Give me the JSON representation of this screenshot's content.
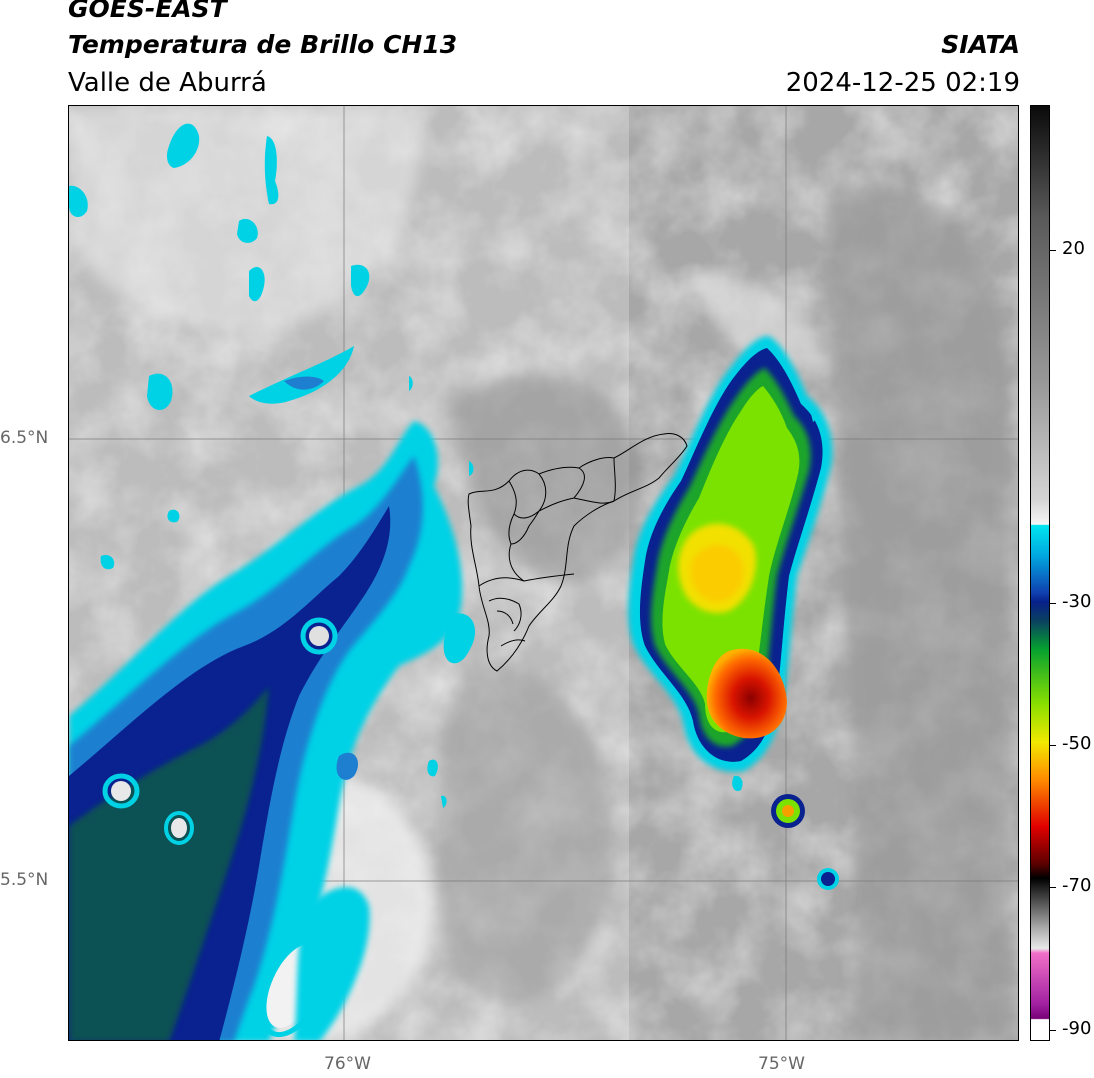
{
  "header": {
    "satellite": "GOES-EAST",
    "product": "Temperatura de Brillo CH13",
    "region": "Valle de Aburrá",
    "agency": "SIATA",
    "datetime": "2024-12-25 02:19"
  },
  "axes": {
    "lat_labels": [
      "6.5°N",
      "5.5°N"
    ],
    "lon_labels": [
      "76°W",
      "75°W"
    ]
  },
  "colorbar": {
    "tick_labels": [
      "20",
      "-30",
      "-50",
      "-70",
      "-90"
    ]
  },
  "colors": {
    "background_gray": "#a8a8a8",
    "cold_cyan": "#00d4e8",
    "cold_navy": "#0a1f8a",
    "cold_teal": "#0e5a48",
    "storm_green": "#7ce400",
    "storm_yellow": "#f4e200",
    "storm_red": "#d21000",
    "boundary": "#000000"
  }
}
